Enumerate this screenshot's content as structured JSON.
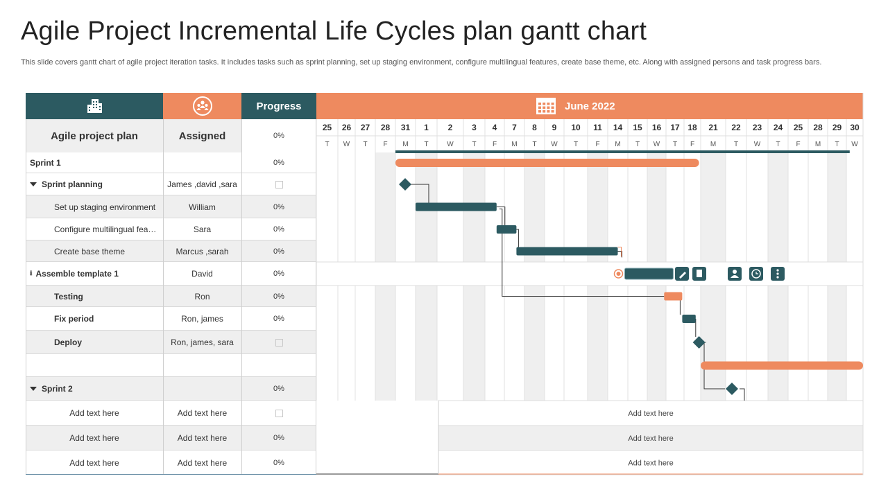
{
  "header": {
    "title": "Agile Project Incremental Life Cycles plan gantt chart",
    "description": "This slide covers gantt chart of agile project iteration tasks. It includes tasks such as sprint planning, set up staging environment, configure multilingual features, create base theme, etc. Along with assigned persons and task progress bars."
  },
  "table": {
    "plan_header": "Agile project plan",
    "assigned_header": "Assigned",
    "progress_header": "Progress",
    "header_progress_value": "0%",
    "rows": [
      {
        "task": "Sprint 1",
        "assigned": "",
        "progress": "0%",
        "style": "sprint"
      },
      {
        "task": "Sprint planning",
        "assigned": "James ,david ,sara",
        "progress": "",
        "style": "group"
      },
      {
        "task": "Set up staging environment",
        "assigned": "William",
        "progress": "0%",
        "style": "sub"
      },
      {
        "task": "Configure multilingual fea…",
        "assigned": "Sara",
        "progress": "0%",
        "style": "sub"
      },
      {
        "task": "Create  base theme",
        "assigned": "Marcus ,sarah",
        "progress": "0%",
        "style": "sub"
      },
      {
        "task": "Assemble template 1",
        "assigned": "David",
        "progress": "0%",
        "style": "milestone"
      },
      {
        "task": "Testing",
        "assigned": "Ron",
        "progress": "0%",
        "style": "bold"
      },
      {
        "task": "Fix period",
        "assigned": "Ron, james",
        "progress": "0%",
        "style": "bold"
      },
      {
        "task": "Deploy",
        "assigned": "Ron, james, sara",
        "progress": "",
        "style": "bold"
      },
      {
        "task": "",
        "assigned": "",
        "progress": "",
        "style": "blank"
      },
      {
        "task": "Sprint 2",
        "assigned": "",
        "progress": "0%",
        "style": "group"
      },
      {
        "task": "Add text here",
        "assigned": "Add text here",
        "progress": "",
        "style": "placeholder"
      },
      {
        "task": "Add text here",
        "assigned": "Add text here",
        "progress": "0%",
        "style": "placeholder"
      },
      {
        "task": "Add text here",
        "assigned": "Add text here",
        "progress": "0%",
        "style": "placeholder"
      }
    ],
    "gantt_notes": [
      "Add text here",
      "Add text here",
      "Add text here"
    ]
  },
  "chart_data": {
    "type": "gantt",
    "title": "June 2022",
    "day_numbers": [
      "25",
      "26",
      "27",
      "28",
      "31",
      "1",
      "2",
      "3",
      "4",
      "7",
      "8",
      "9",
      "10",
      "11",
      "14",
      "15",
      "16",
      "17",
      "18",
      "21",
      "22",
      "23",
      "24",
      "25",
      "28",
      "29",
      "30"
    ],
    "day_letters": [
      "T",
      "W",
      "T",
      "F",
      "M",
      "T",
      "W",
      "T",
      "F",
      "M",
      "T",
      "W",
      "T",
      "F",
      "M",
      "T",
      "W",
      "T",
      "F",
      "M",
      "T",
      "W",
      "T",
      "F",
      "M",
      "T",
      "W"
    ],
    "shaded_day_columns": [
      3,
      5,
      7,
      10,
      13,
      16,
      19,
      22,
      25
    ],
    "summary_line": {
      "start": 4,
      "end": 26.2
    },
    "tasks": [
      {
        "row": 0,
        "kind": "bar",
        "color": "#ee8a5f",
        "start": 4,
        "end": 18.9,
        "rounded": true
      },
      {
        "row": 1,
        "kind": "milestone",
        "color": "#2c5a61",
        "at": 4
      },
      {
        "row": 2,
        "kind": "bar",
        "color": "#2c5a61",
        "start": 5,
        "end": 8.6
      },
      {
        "row": 3,
        "kind": "bar",
        "color": "#2c5a61",
        "start": 8.6,
        "end": 9.6
      },
      {
        "row": 4,
        "kind": "bar",
        "color": "#2c5a61",
        "start": 9.6,
        "end": 14.5
      },
      {
        "row": 5,
        "kind": "bar-selected",
        "color": "#2c5a61",
        "start": 14.5,
        "end": 17.4
      },
      {
        "row": 6,
        "kind": "bar",
        "color": "#ee8a5f",
        "start": 16.9,
        "end": 17.9
      },
      {
        "row": 7,
        "kind": "bar",
        "color": "#2c5a61",
        "start": 17.9,
        "end": 18.7
      },
      {
        "row": 8,
        "kind": "milestone",
        "color": "#2c5a61",
        "at": 18.9
      },
      {
        "row": 9,
        "kind": "bar",
        "color": "#ee8a5f",
        "start": 19,
        "end": 27,
        "rounded": true
      },
      {
        "row": 10,
        "kind": "milestone",
        "color": "#2c5a61",
        "at": 20.3
      }
    ],
    "toolbar_icons": [
      "edit-icon",
      "notes-icon",
      "person-icon",
      "clock-icon",
      "more-icon"
    ],
    "colors": {
      "teal": "#2c5a61",
      "orange": "#ee8a5f",
      "shade": "#efefef"
    }
  }
}
